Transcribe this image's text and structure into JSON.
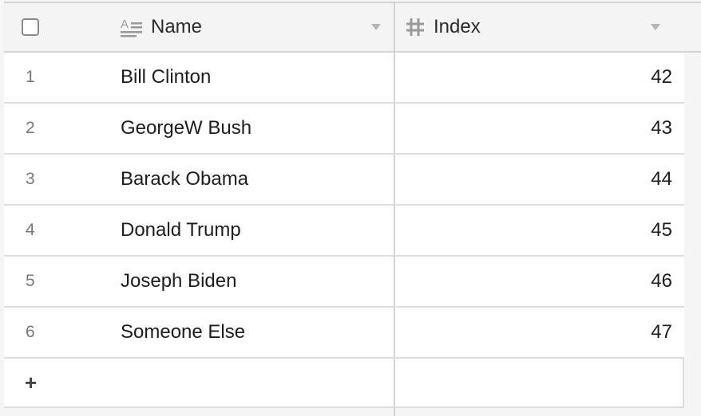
{
  "header": {
    "columns": [
      {
        "label": "Name",
        "icon": "text-field-icon"
      },
      {
        "label": "Index",
        "icon": "number-field-icon"
      }
    ]
  },
  "rows": [
    {
      "num": "1",
      "name": "Bill Clinton",
      "index": "42"
    },
    {
      "num": "2",
      "name": "GeorgeW Bush",
      "index": "43"
    },
    {
      "num": "3",
      "name": "Barack Obama",
      "index": "44"
    },
    {
      "num": "4",
      "name": "Donald Trump",
      "index": "45"
    },
    {
      "num": "5",
      "name": "Joseph Biden",
      "index": "46"
    },
    {
      "num": "6",
      "name": "Someone Else",
      "index": "47"
    }
  ],
  "add_row_label": "+"
}
